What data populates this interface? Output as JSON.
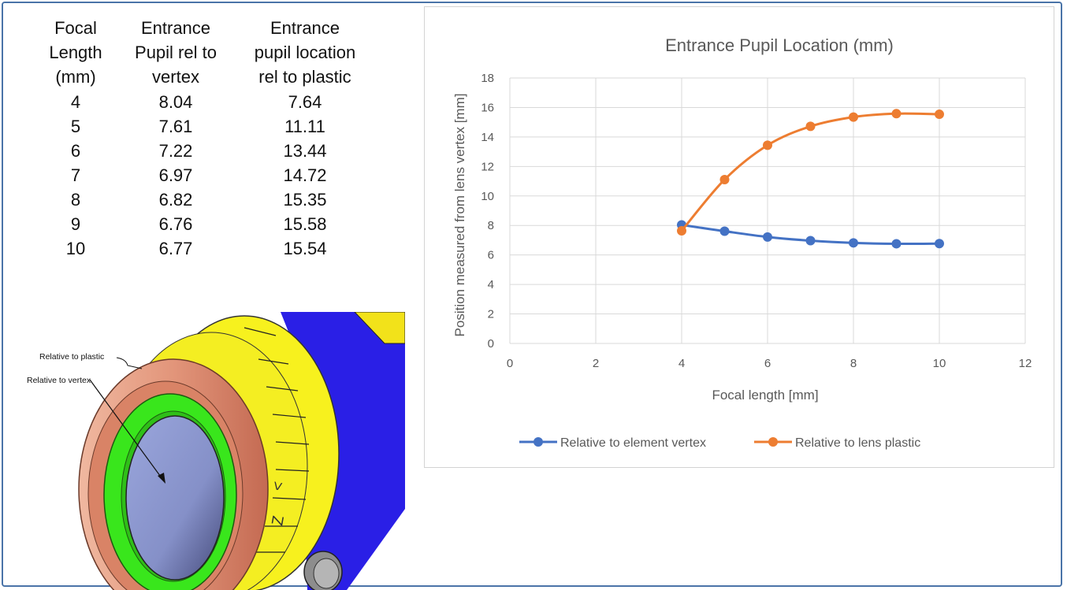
{
  "table": {
    "headers": [
      "Focal\nLength\n(mm)",
      "Entrance\nPupil rel to\nvertex",
      "Entrance\npupil location\nrel to plastic"
    ],
    "rows": [
      [
        "4",
        "8.04",
        "7.64"
      ],
      [
        "5",
        "7.61",
        "11.11"
      ],
      [
        "6",
        "7.22",
        "13.44"
      ],
      [
        "7",
        "6.97",
        "14.72"
      ],
      [
        "8",
        "6.82",
        "15.35"
      ],
      [
        "9",
        "6.76",
        "15.58"
      ],
      [
        "10",
        "6.77",
        "15.54"
      ]
    ]
  },
  "figure": {
    "label_plastic": "Relative to plastic",
    "label_vertex": "Relative to vertex",
    "dial_marks": [
      "<",
      "Z"
    ]
  },
  "chart_data": {
    "type": "line",
    "title": "Entrance Pupil Location (mm)",
    "xlabel": "Focal length [mm]",
    "ylabel": "Position measured from lens vertex [mm]",
    "xlim": [
      0,
      12
    ],
    "ylim": [
      0,
      18
    ],
    "xticks": [
      "0",
      "2",
      "4",
      "6",
      "8",
      "10",
      "12"
    ],
    "yticks": [
      "0",
      "2",
      "4",
      "6",
      "8",
      "10",
      "12",
      "14",
      "16",
      "18"
    ],
    "grid": true,
    "legend_position": "bottom",
    "x": [
      4,
      5,
      6,
      7,
      8,
      9,
      10
    ],
    "series": [
      {
        "name": "Relative to element vertex",
        "color": "#4472c4",
        "values": [
          8.04,
          7.61,
          7.22,
          6.97,
          6.82,
          6.76,
          6.77
        ]
      },
      {
        "name": "Relative to lens plastic",
        "color": "#ed7d31",
        "values": [
          7.64,
          11.11,
          13.44,
          14.72,
          15.35,
          15.58,
          15.54
        ]
      }
    ]
  }
}
